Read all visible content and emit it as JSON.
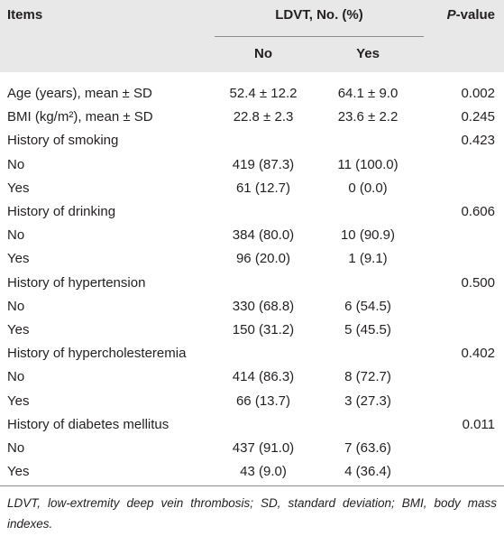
{
  "table": {
    "header": {
      "items": "Items",
      "group": "LDVT, No. (%)",
      "no": "No",
      "yes": "Yes",
      "p_value": "P-value"
    },
    "rows": [
      {
        "item": "Age (years), mean ± SD",
        "no": "52.4 ± 12.2",
        "yes": "64.1 ± 9.0",
        "p": "0.002"
      },
      {
        "item": "BMI (kg/m²), mean ± SD",
        "no": "22.8 ± 2.3",
        "yes": "23.6 ± 2.2",
        "p": "0.245"
      },
      {
        "item": "History of smoking",
        "p": "0.423"
      },
      {
        "item": "No",
        "no": "419 (87.3)",
        "yes": "11 (100.0)"
      },
      {
        "item": "Yes",
        "no": "61 (12.7)",
        "yes": "0 (0.0)"
      },
      {
        "item": "History of drinking",
        "p": "0.606"
      },
      {
        "item": "No",
        "no": "384 (80.0)",
        "yes": "10 (90.9)"
      },
      {
        "item": "Yes",
        "no": "96 (20.0)",
        "yes": "1 (9.1)"
      },
      {
        "item": "History of hypertension",
        "p": "0.500"
      },
      {
        "item": "No",
        "no": "330 (68.8)",
        "yes": "6 (54.5)"
      },
      {
        "item": "Yes",
        "no": "150 (31.2)",
        "yes": "5 (45.5)"
      },
      {
        "item": "History of hypercholesteremia",
        "p": "0.402"
      },
      {
        "item": "No",
        "no": "414 (86.3)",
        "yes": "8 (72.7)"
      },
      {
        "item": "Yes",
        "no": "66 (13.7)",
        "yes": "3 (27.3)"
      },
      {
        "item": "History of diabetes mellitus",
        "p": "0.011"
      },
      {
        "item": "No",
        "no": "437 (91.0)",
        "yes": "7 (63.6)"
      },
      {
        "item": "Yes",
        "no": "43 (9.0)",
        "yes": "4 (36.4)"
      }
    ],
    "footnote": "LDVT, low-extremity deep vein thrombosis; SD, standard deviation; BMI, body mass indexes."
  }
}
